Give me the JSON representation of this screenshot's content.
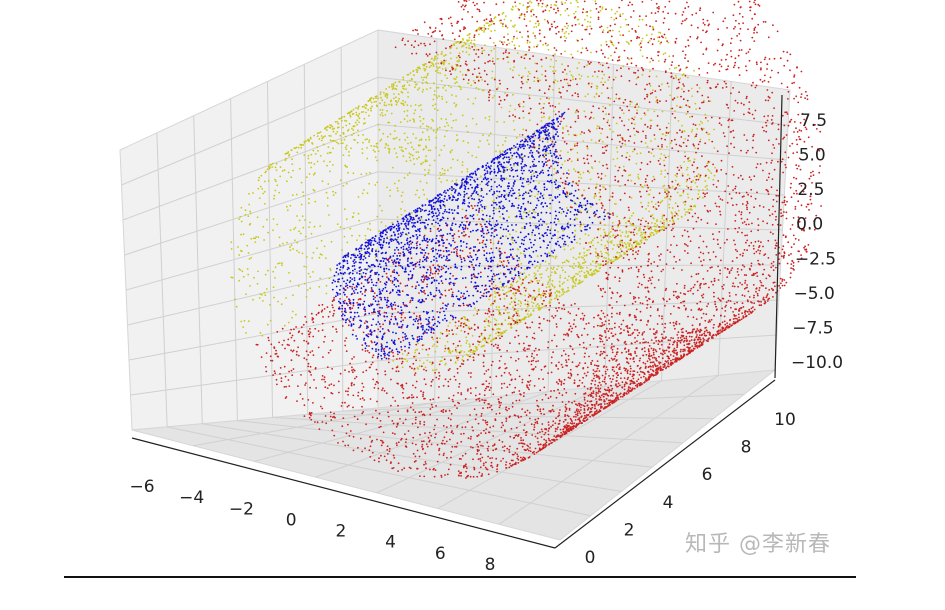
{
  "chart_data": {
    "type": "scatter",
    "projection": "3d",
    "title": "",
    "xlabel": "",
    "ylabel": "",
    "zlabel": "",
    "x_ticks": [
      "−6",
      "−4",
      "−2",
      "0",
      "2",
      "4",
      "6",
      "8"
    ],
    "y_ticks": [
      "0",
      "2",
      "4",
      "6",
      "8",
      "10"
    ],
    "z_ticks": [
      "−10.0",
      "−7.5",
      "−5.0",
      "−2.5",
      "0.0",
      "2.5",
      "5.0",
      "7.5"
    ],
    "xlim": [
      -7,
      9
    ],
    "ylim": [
      -1,
      11
    ],
    "zlim": [
      -11,
      8.5
    ],
    "grid": true,
    "legend": false,
    "series": [
      {
        "color": "#c8c820",
        "shape": "swiss-roll outer upper arc",
        "t_range": [
          1.5,
          3.2
        ],
        "point_count": 2600
      },
      {
        "color": "#cc2222",
        "shape": "swiss-roll outer lower and front sheet",
        "t_range": [
          3.2,
          4.5
        ],
        "point_count": 5200
      },
      {
        "color": "#1010dd",
        "shape": "swiss-roll inner core",
        "t_range": [
          0.9,
          1.5
        ],
        "point_count": 2200
      }
    ]
  },
  "watermark": "知乎 @李新春"
}
